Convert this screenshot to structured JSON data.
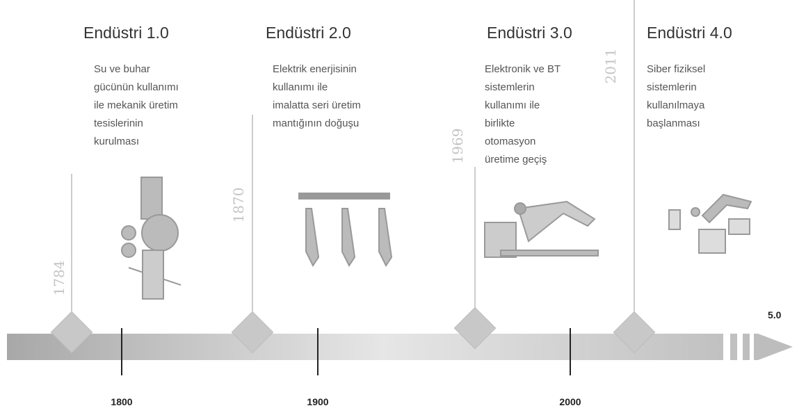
{
  "eras": [
    {
      "title": "Endüstri 1.0",
      "lines": [
        "Su ve buhar",
        "gücünün kullanımı",
        "ile mekanik üretim",
        "tesislerinin",
        "kurulması"
      ],
      "year": "1784"
    },
    {
      "title": "Endüstri 2.0",
      "lines": [
        "Elektrik enerjisinin",
        "kullanımı ile",
        "imalatta seri üretim",
        "mantığının doğuşu"
      ],
      "year": "1870"
    },
    {
      "title": "Endüstri 3.0",
      "lines": [
        "Elektronik ve BT",
        "sistemlerin",
        "kullanımı ile",
        "birlikte",
        "otomasyon",
        "üretime geçiş"
      ],
      "year": "1969"
    },
    {
      "title": "Endüstri 4.0",
      "lines": [
        "Siber fiziksel",
        "sistemlerin",
        "kullanılmaya",
        "başlanması"
      ],
      "year": "2011"
    }
  ],
  "axis_labels": [
    "1800",
    "1900",
    "2000"
  ],
  "next_label": "5.0"
}
